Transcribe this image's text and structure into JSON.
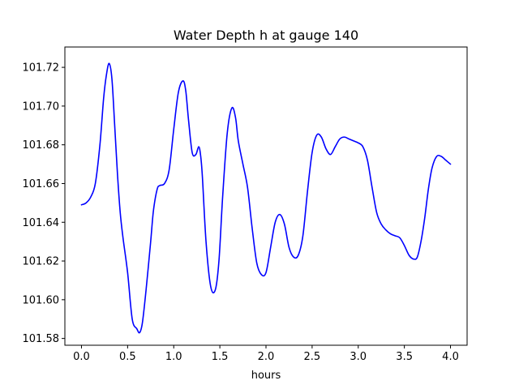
{
  "chart_data": {
    "type": "line",
    "title": "Water Depth h at gauge 140",
    "xlabel": "hours",
    "ylabel": "",
    "xlim": [
      -0.18,
      4.18
    ],
    "ylim": [
      101.5765,
      101.7305
    ],
    "xticks": [
      0.0,
      0.5,
      1.0,
      1.5,
      2.0,
      2.5,
      3.0,
      3.5,
      4.0
    ],
    "xtick_labels": [
      "0.0",
      "0.5",
      "1.0",
      "1.5",
      "2.0",
      "2.5",
      "3.0",
      "3.5",
      "4.0"
    ],
    "yticks": [
      101.58,
      101.6,
      101.62,
      101.64,
      101.66,
      101.68,
      101.7,
      101.72
    ],
    "ytick_labels": [
      "101.58",
      "101.60",
      "101.62",
      "101.64",
      "101.66",
      "101.68",
      "101.70",
      "101.72"
    ],
    "grid": false,
    "series": [
      {
        "color": "#0000ff",
        "x": [
          0.0,
          0.05,
          0.1,
          0.15,
          0.2,
          0.24,
          0.27,
          0.3,
          0.33,
          0.36,
          0.39,
          0.42,
          0.45,
          0.5,
          0.55,
          0.6,
          0.63,
          0.66,
          0.7,
          0.75,
          0.78,
          0.82,
          0.85,
          0.9,
          0.95,
          1.0,
          1.05,
          1.1,
          1.13,
          1.16,
          1.2,
          1.24,
          1.27,
          1.29,
          1.31,
          1.35,
          1.4,
          1.45,
          1.49,
          1.53,
          1.58,
          1.63,
          1.67,
          1.7,
          1.75,
          1.8,
          1.85,
          1.9,
          1.95,
          2.0,
          2.05,
          2.1,
          2.15,
          2.2,
          2.25,
          2.3,
          2.35,
          2.4,
          2.45,
          2.5,
          2.55,
          2.6,
          2.65,
          2.7,
          2.75,
          2.8,
          2.85,
          2.9,
          2.95,
          3.0,
          3.05,
          3.1,
          3.15,
          3.2,
          3.25,
          3.3,
          3.35,
          3.4,
          3.45,
          3.5,
          3.55,
          3.6,
          3.64,
          3.68,
          3.72,
          3.76,
          3.8,
          3.85,
          3.9,
          3.95,
          4.0
        ],
        "y": [
          101.649,
          101.65,
          101.653,
          101.66,
          101.68,
          101.704,
          101.716,
          101.722,
          101.714,
          101.69,
          101.665,
          101.645,
          101.632,
          101.614,
          101.59,
          101.585,
          101.583,
          101.588,
          101.605,
          101.63,
          101.646,
          101.657,
          101.659,
          101.66,
          101.667,
          101.688,
          101.707,
          101.713,
          101.708,
          101.693,
          101.676,
          101.675,
          101.679,
          101.675,
          101.664,
          101.63,
          101.607,
          101.605,
          101.62,
          101.653,
          101.686,
          101.699,
          101.694,
          101.682,
          101.67,
          101.658,
          101.637,
          101.619,
          101.613,
          101.614,
          101.627,
          101.64,
          101.644,
          101.639,
          101.627,
          101.622,
          101.623,
          101.633,
          101.656,
          101.676,
          101.685,
          101.684,
          101.678,
          101.675,
          101.679,
          101.683,
          101.684,
          101.683,
          101.682,
          101.681,
          101.679,
          101.672,
          101.658,
          101.645,
          101.639,
          101.636,
          101.634,
          101.633,
          101.632,
          101.628,
          101.623,
          101.621,
          101.622,
          101.63,
          101.642,
          101.657,
          101.668,
          101.674,
          101.674,
          101.672,
          101.67
        ]
      }
    ]
  }
}
